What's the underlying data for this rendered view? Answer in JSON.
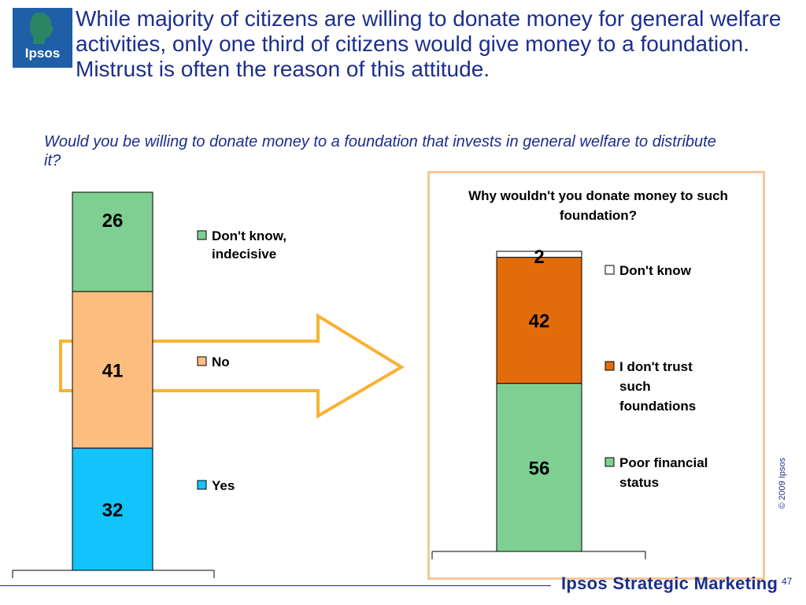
{
  "header": {
    "logo_text": "Ipsos",
    "title": "While majority of citizens are willing to donate money for general welfare activities, only one third of citizens would give money to a foundation. Mistrust is often the reason of this attitude.",
    "question": "Would you be willing to donate money to a foundation that invests in general welfare to distribute it?"
  },
  "chart_data": [
    {
      "type": "bar",
      "stacked": true,
      "categories": [
        ""
      ],
      "series": [
        {
          "name": "Yes",
          "values": [
            32
          ],
          "color": "#13c4fa"
        },
        {
          "name": "No",
          "values": [
            41
          ],
          "color": "#fdbd7f"
        },
        {
          "name": "Don't know, indecisive",
          "values": [
            26
          ],
          "color": "#7fcf92"
        }
      ],
      "legend_lines": {
        "yes": [
          "Yes"
        ],
        "no": [
          "No"
        ],
        "dk": [
          "Don't know,",
          "indecisive"
        ]
      },
      "legend_position": "right"
    },
    {
      "type": "bar",
      "stacked": true,
      "title": "Why wouldn't you donate money to such foundation?",
      "categories": [
        ""
      ],
      "series": [
        {
          "name": "Poor financial status",
          "values": [
            56
          ],
          "color": "#7fcf92"
        },
        {
          "name": "I don't trust such foundations",
          "values": [
            42
          ],
          "color": "#e36c0a"
        },
        {
          "name": "Don't know",
          "values": [
            2
          ],
          "color": "#ffffff"
        }
      ],
      "legend_lines": {
        "poor": [
          "Poor financial",
          "status"
        ],
        "trust": [
          "I don't trust",
          "such",
          "foundations"
        ],
        "dk": [
          "Don't know"
        ]
      },
      "legend_position": "right"
    }
  ],
  "footer": {
    "copyright": "© 2009 Ipsos",
    "page_number": "47",
    "brand": "Ipsos Strategic Marketing"
  }
}
